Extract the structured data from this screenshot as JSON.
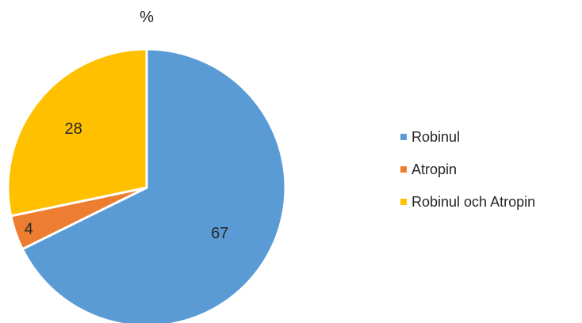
{
  "chart_data": {
    "type": "pie",
    "title": "%",
    "categories": [
      "Robinul",
      "Atropin",
      "Robinul och Atropin"
    ],
    "values": [
      67,
      4,
      28
    ],
    "colors": [
      "#5B9BD5",
      "#ED7D31",
      "#FFC000"
    ],
    "data_labels": [
      "67",
      "4",
      "28"
    ],
    "legend_position": "right"
  }
}
